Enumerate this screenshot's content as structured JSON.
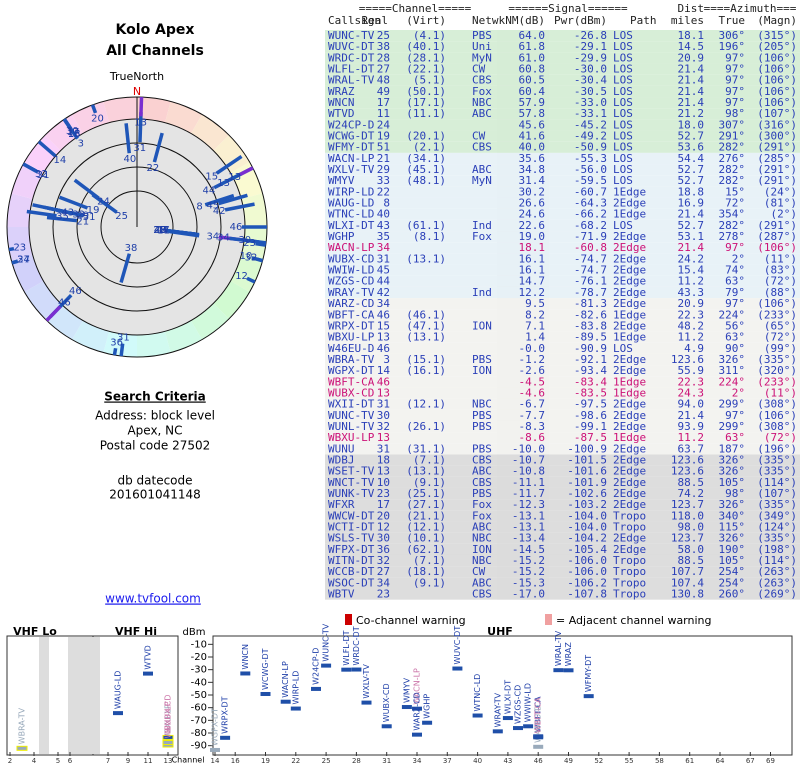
{
  "left": {
    "title": "Kolo Apex",
    "subtitle": "All Channels",
    "north_label": "TrueNorth",
    "north": "N",
    "criteria_title": "Search Criteria",
    "address": "Address: block level",
    "city": "Apex, NC",
    "postal": "Postal code 27502",
    "datecode_label": "db datecode",
    "datecode": "201601041148",
    "link": "www.tvfool.com"
  },
  "table": {
    "group_headers": {
      "channel": "=====Channel=====",
      "signal": "======Signal======",
      "dist": "Dist",
      "azimuth": "====Azimuth==="
    },
    "headers": {
      "callsign": "Callsign",
      "real": "Real",
      "virt": "(Virt)",
      "netwk": "Netwk",
      "nm": "NM(dB)",
      "pwr": "Pwr(dBm)",
      "path": "Path",
      "dist": "miles",
      "true": "True",
      "magn": "(Magn)"
    },
    "rows": [
      {
        "callsign": "WUNC-TV",
        "real": 25,
        "virt": "(4.1)",
        "netwk": "PBS",
        "nm": "64.0",
        "pwr": "-26.8",
        "path": "LOS",
        "dist": "18.1",
        "true": "306°",
        "magn": "(315°)",
        "color": "#2a3fb8"
      },
      {
        "callsign": "WUVC-DT",
        "real": 38,
        "virt": "(40.1)",
        "netwk": "Uni",
        "nm": "61.8",
        "pwr": "-29.1",
        "path": "LOS",
        "dist": "14.5",
        "true": "196°",
        "magn": "(205°)",
        "color": "#2a3fb8"
      },
      {
        "callsign": "WRDC-DT",
        "real": 28,
        "virt": "(28.1)",
        "netwk": "MyN",
        "nm": "61.0",
        "pwr": "-29.9",
        "path": "LOS",
        "dist": "20.9",
        "true": "97°",
        "magn": "(106°)",
        "color": "#2a3fb8"
      },
      {
        "callsign": "WLFL-DT",
        "real": 27,
        "virt": "(22.1)",
        "netwk": "CW",
        "nm": "60.8",
        "pwr": "-30.0",
        "path": "LOS",
        "dist": "21.4",
        "true": "97°",
        "magn": "(106°)",
        "color": "#2a3fb8"
      },
      {
        "callsign": "WRAL-TV",
        "real": 48,
        "virt": "(5.1)",
        "netwk": "CBS",
        "nm": "60.5",
        "pwr": "-30.4",
        "path": "LOS",
        "dist": "21.4",
        "true": "97°",
        "magn": "(106°)",
        "color": "#2a3fb8"
      },
      {
        "callsign": "WRAZ",
        "real": 49,
        "virt": "(50.1)",
        "netwk": "Fox",
        "nm": "60.4",
        "pwr": "-30.5",
        "path": "LOS",
        "dist": "21.4",
        "true": "97°",
        "magn": "(106°)",
        "color": "#2a3fb8"
      },
      {
        "callsign": "WNCN",
        "real": 17,
        "virt": "(17.1)",
        "netwk": "NBC",
        "nm": "57.9",
        "pwr": "-33.0",
        "path": "LOS",
        "dist": "21.4",
        "true": "97°",
        "magn": "(106°)",
        "color": "#2a3fb8"
      },
      {
        "callsign": "WTVD",
        "real": 11,
        "virt": "(11.1)",
        "netwk": "ABC",
        "nm": "57.8",
        "pwr": "-33.1",
        "path": "LOS",
        "dist": "21.2",
        "true": "98°",
        "magn": "(107°)",
        "color": "#2a3fb8"
      },
      {
        "callsign": "W24CP-D",
        "real": 24,
        "virt": null,
        "netwk": null,
        "nm": "45.6",
        "pwr": "-45.2",
        "path": "LOS",
        "dist": "18.0",
        "true": "307°",
        "magn": "(316°)",
        "color": "#2a3fb8"
      },
      {
        "callsign": "WCWG-DT",
        "real": 19,
        "virt": "(20.1)",
        "netwk": "CW",
        "nm": "41.6",
        "pwr": "-49.2",
        "path": "LOS",
        "dist": "52.7",
        "true": "291°",
        "magn": "(300°)",
        "color": "#2a3fb8"
      },
      {
        "callsign": "WFMY-DT",
        "real": 51,
        "virt": "(2.1)",
        "netwk": "CBS",
        "nm": "40.0",
        "pwr": "-50.9",
        "path": "LOS",
        "dist": "53.6",
        "true": "282°",
        "magn": "(291°)",
        "color": "#2a3fb8"
      },
      {
        "callsign": "WACN-LP",
        "real": 21,
        "virt": "(34.1)",
        "netwk": null,
        "nm": "35.6",
        "pwr": "-55.3",
        "path": "LOS",
        "dist": "54.4",
        "true": "276°",
        "magn": "(285°)",
        "color": "#2a3fb8"
      },
      {
        "callsign": "WXLV-TV",
        "real": 29,
        "virt": "(45.1)",
        "netwk": "ABC",
        "nm": "34.8",
        "pwr": "-56.0",
        "path": "LOS",
        "dist": "52.7",
        "true": "282°",
        "magn": "(291°)",
        "color": "#2a3fb8"
      },
      {
        "callsign": "WMYV",
        "real": 33,
        "virt": "(48.1)",
        "netwk": "MyN",
        "nm": "31.4",
        "pwr": "-59.5",
        "path": "LOS",
        "dist": "52.7",
        "true": "282°",
        "magn": "(291°)",
        "color": "#2a3fb8"
      },
      {
        "callsign": "WIRP-LD",
        "real": 22,
        "virt": null,
        "netwk": null,
        "nm": "30.2",
        "pwr": "-60.7",
        "path": "1Edge",
        "dist": "18.8",
        "true": "15°",
        "magn": "(24°)",
        "color": "#2a3fb8"
      },
      {
        "callsign": "WAUG-LD",
        "real": 8,
        "virt": null,
        "netwk": null,
        "nm": "26.6",
        "pwr": "-64.3",
        "path": "2Edge",
        "dist": "16.9",
        "true": "72°",
        "magn": "(81°)",
        "color": "#2a3fb8"
      },
      {
        "callsign": "WTNC-LD",
        "real": 40,
        "virt": null,
        "netwk": null,
        "nm": "24.6",
        "pwr": "-66.2",
        "path": "1Edge",
        "dist": "21.4",
        "true": "354°",
        "magn": "(2°)",
        "color": "#2a3fb8"
      },
      {
        "callsign": "WLXI-DT",
        "real": 43,
        "virt": "(61.1)",
        "netwk": "Ind",
        "nm": "22.6",
        "pwr": "-68.2",
        "path": "LOS",
        "dist": "52.7",
        "true": "282°",
        "magn": "(291°)",
        "color": "#2a3fb8"
      },
      {
        "callsign": "WGHP",
        "real": 35,
        "virt": "(8.1)",
        "netwk": "Fox",
        "nm": "19.0",
        "pwr": "-71.9",
        "path": "2Edge",
        "dist": "53.1",
        "true": "278°",
        "magn": "(287°)",
        "color": "#2a3fb8"
      },
      {
        "callsign": "WACN-LP",
        "real": 34,
        "virt": null,
        "netwk": null,
        "nm": "18.1",
        "pwr": "-60.8",
        "path": "2Edge",
        "dist": "21.4",
        "true": "97°",
        "magn": "(106°)",
        "color": "#cc1177"
      },
      {
        "callsign": "WUBX-CD",
        "real": 31,
        "virt": "(13.1)",
        "netwk": null,
        "nm": "16.1",
        "pwr": "-74.7",
        "path": "2Edge",
        "dist": "24.2",
        "true": "2°",
        "magn": "(11°)",
        "color": "#2a3fb8"
      },
      {
        "callsign": "WWIW-LD",
        "real": 45,
        "virt": null,
        "netwk": null,
        "nm": "16.1",
        "pwr": "-74.7",
        "path": "2Edge",
        "dist": "15.4",
        "true": "74°",
        "magn": "(83°)",
        "color": "#2a3fb8"
      },
      {
        "callsign": "WZGS-CD",
        "real": 44,
        "virt": null,
        "netwk": null,
        "nm": "14.7",
        "pwr": "-76.1",
        "path": "2Edge",
        "dist": "11.2",
        "true": "63°",
        "magn": "(72°)",
        "color": "#2a3fb8"
      },
      {
        "callsign": "WRAY-TV",
        "real": 42,
        "virt": null,
        "netwk": "Ind",
        "nm": "12.2",
        "pwr": "-78.7",
        "path": "2Edge",
        "dist": "43.3",
        "true": "79°",
        "magn": "(88°)",
        "color": "#2a3fb8"
      },
      {
        "callsign": "WARZ-CD",
        "real": 34,
        "virt": null,
        "netwk": null,
        "nm": "9.5",
        "pwr": "-81.3",
        "path": "2Edge",
        "dist": "20.9",
        "true": "97°",
        "magn": "(106°)",
        "color": "#2a3fb8"
      },
      {
        "callsign": "WBFT-CA",
        "real": 46,
        "virt": "(46.1)",
        "netwk": null,
        "nm": "8.2",
        "pwr": "-82.6",
        "path": "1Edge",
        "dist": "22.3",
        "true": "224°",
        "magn": "(233°)",
        "color": "#2a3fb8"
      },
      {
        "callsign": "WRPX-DT",
        "real": 15,
        "virt": "(47.1)",
        "netwk": "ION",
        "nm": "7.1",
        "pwr": "-83.8",
        "path": "2Edge",
        "dist": "48.2",
        "true": "56°",
        "magn": "(65°)",
        "color": "#2a3fb8"
      },
      {
        "callsign": "WBXU-LP",
        "real": 13,
        "virt": "(13.1)",
        "netwk": null,
        "nm": "1.4",
        "pwr": "-89.5",
        "path": "1Edge",
        "dist": "11.2",
        "true": "63°",
        "magn": "(72°)",
        "color": "#2a3fb8"
      },
      {
        "callsign": "W46EU-D",
        "real": 46,
        "virt": null,
        "netwk": null,
        "nm": "-0.0",
        "pwr": "-90.9",
        "path": "LOS",
        "dist": "4.9",
        "true": "90°",
        "magn": "(99°)",
        "color": "#2a3fb8"
      },
      {
        "callsign": "WBRA-TV",
        "real": 3,
        "virt": "(15.1)",
        "netwk": "PBS",
        "nm": "-1.2",
        "pwr": "-92.1",
        "path": "2Edge",
        "dist": "123.6",
        "true": "326°",
        "magn": "(335°)",
        "color": "#2a3fb8"
      },
      {
        "callsign": "WGPX-DT",
        "real": 14,
        "virt": "(16.1)",
        "netwk": "ION",
        "nm": "-2.6",
        "pwr": "-93.4",
        "path": "2Edge",
        "dist": "55.9",
        "true": "311°",
        "magn": "(320°)",
        "color": "#2a3fb8"
      },
      {
        "callsign": "WBFT-CA",
        "real": 46,
        "virt": null,
        "netwk": null,
        "nm": "-4.5",
        "pwr": "-83.4",
        "path": "1Edge",
        "dist": "22.3",
        "true": "224°",
        "magn": "(233°)",
        "color": "#cc1177"
      },
      {
        "callsign": "WUBX-CD",
        "real": 13,
        "virt": null,
        "netwk": null,
        "nm": "-4.6",
        "pwr": "-83.5",
        "path": "1Edge",
        "dist": "24.3",
        "true": "2°",
        "magn": "(11°)",
        "color": "#cc1177"
      },
      {
        "callsign": "WXII-DT",
        "real": 31,
        "virt": "(12.1)",
        "netwk": "NBC",
        "nm": "-6.7",
        "pwr": "-97.5",
        "path": "2Edge",
        "dist": "94.0",
        "true": "299°",
        "magn": "(308°)",
        "color": "#2a3fb8"
      },
      {
        "callsign": "WUNC-TV",
        "real": 30,
        "virt": null,
        "netwk": "PBS",
        "nm": "-7.7",
        "pwr": "-98.6",
        "path": "2Edge",
        "dist": "21.4",
        "true": "97°",
        "magn": "(106°)",
        "color": "#2a3fb8"
      },
      {
        "callsign": "WUNL-TV",
        "real": 32,
        "virt": "(26.1)",
        "netwk": "PBS",
        "nm": "-8.3",
        "pwr": "-99.1",
        "path": "2Edge",
        "dist": "93.9",
        "true": "299°",
        "magn": "(308°)",
        "color": "#2a3fb8"
      },
      {
        "callsign": "WBXU-LP",
        "real": 13,
        "virt": null,
        "netwk": null,
        "nm": "-8.6",
        "pwr": "-87.5",
        "path": "1Edge",
        "dist": "11.2",
        "true": "63°",
        "magn": "(72°)",
        "color": "#cc1177"
      },
      {
        "callsign": "WUNU",
        "real": 31,
        "virt": "(31.1)",
        "netwk": "PBS",
        "nm": "-10.0",
        "pwr": "-100.9",
        "path": "2Edge",
        "dist": "63.7",
        "true": "187°",
        "magn": "(196°)",
        "color": "#2a3fb8"
      },
      {
        "callsign": "WDBJ",
        "real": 18,
        "virt": "(7.1)",
        "netwk": "CBS",
        "nm": "-10.7",
        "pwr": "-101.5",
        "path": "2Edge",
        "dist": "123.6",
        "true": "326°",
        "magn": "(335°)",
        "color": "#2a3fb8"
      },
      {
        "callsign": "WSET-TV",
        "real": 13,
        "virt": "(13.1)",
        "netwk": "ABC",
        "nm": "-10.8",
        "pwr": "-101.6",
        "path": "2Edge",
        "dist": "123.6",
        "true": "326°",
        "magn": "(335°)",
        "color": "#2a3fb8"
      },
      {
        "callsign": "WNCT-TV",
        "real": 10,
        "virt": "(9.1)",
        "netwk": "CBS",
        "nm": "-11.1",
        "pwr": "-101.9",
        "path": "2Edge",
        "dist": "88.5",
        "true": "105°",
        "magn": "(114°)",
        "color": "#2a3fb8"
      },
      {
        "callsign": "WUNK-TV",
        "real": 23,
        "virt": "(25.1)",
        "netwk": "PBS",
        "nm": "-11.7",
        "pwr": "-102.6",
        "path": "2Edge",
        "dist": "74.2",
        "true": "98°",
        "magn": "(107°)",
        "color": "#2a3fb8"
      },
      {
        "callsign": "WFXR",
        "real": 17,
        "virt": "(27.1)",
        "netwk": "Fox",
        "nm": "-12.3",
        "pwr": "-103.2",
        "path": "2Edge",
        "dist": "123.7",
        "true": "326°",
        "magn": "(335°)",
        "color": "#2a3fb8"
      },
      {
        "callsign": "WWCW-DT",
        "real": 20,
        "virt": "(21.1)",
        "netwk": "Fox",
        "nm": "-13.1",
        "pwr": "-104.0",
        "path": "Tropo",
        "dist": "118.0",
        "true": "340°",
        "magn": "(349°)",
        "color": "#2a3fb8"
      },
      {
        "callsign": "WCTI-DT",
        "real": 12,
        "virt": "(12.1)",
        "netwk": "ABC",
        "nm": "-13.1",
        "pwr": "-104.0",
        "path": "Tropo",
        "dist": "98.0",
        "true": "115°",
        "magn": "(124°)",
        "color": "#2a3fb8"
      },
      {
        "callsign": "WSLS-TV",
        "real": 30,
        "virt": "(10.1)",
        "netwk": "NBC",
        "nm": "-13.4",
        "pwr": "-104.2",
        "path": "2Edge",
        "dist": "123.7",
        "true": "326°",
        "magn": "(335°)",
        "color": "#2a3fb8"
      },
      {
        "callsign": "WFPX-DT",
        "real": 36,
        "virt": "(62.1)",
        "netwk": "ION",
        "nm": "-14.5",
        "pwr": "-105.4",
        "path": "2Edge",
        "dist": "58.0",
        "true": "190°",
        "magn": "(198°)",
        "color": "#2a3fb8"
      },
      {
        "callsign": "WITN-DT",
        "real": 32,
        "virt": "(7.1)",
        "netwk": "NBC",
        "nm": "-15.2",
        "pwr": "-106.0",
        "path": "Tropo",
        "dist": "88.5",
        "true": "105°",
        "magn": "(114°)",
        "color": "#2a3fb8"
      },
      {
        "callsign": "WCCB-DT",
        "real": 27,
        "virt": "(18.1)",
        "netwk": "CW",
        "nm": "-15.2",
        "pwr": "-106.0",
        "path": "Tropo",
        "dist": "107.7",
        "true": "254°",
        "magn": "(263°)",
        "color": "#2a3fb8"
      },
      {
        "callsign": "WSOC-DT",
        "real": 34,
        "virt": "(9.1)",
        "netwk": "ABC",
        "nm": "-15.3",
        "pwr": "-106.2",
        "path": "Tropo",
        "dist": "107.4",
        "true": "254°",
        "magn": "(263°)",
        "color": "#2a3fb8"
      },
      {
        "callsign": "WBTV",
        "real": 23,
        "virt": null,
        "netwk": "CBS",
        "nm": "-17.0",
        "pwr": "-107.8",
        "path": "Tropo",
        "dist": "130.8",
        "true": "260°",
        "magn": "(269°)",
        "color": "#2a3fb8"
      }
    ]
  },
  "spectrum": {
    "vhf_lo": "VHF Lo",
    "vhf_hi": "VHF Hi",
    "uhf": "UHF",
    "y_label": "dBm",
    "x_label": "Channel",
    "legend_co": "Co-channel warning",
    "legend_adj": "= Adjacent channel warning",
    "ylim": [
      -5,
      -95
    ],
    "yticks": [
      -10,
      -20,
      -30,
      -40,
      -50,
      -60,
      -70,
      -80,
      -90
    ],
    "xticks": [
      2,
      4,
      5,
      6,
      7,
      9,
      11,
      13,
      14,
      16,
      19,
      22,
      25,
      28,
      31,
      34,
      37,
      40,
      43,
      46,
      49,
      52,
      55,
      58,
      61,
      64,
      67,
      69
    ]
  }
}
